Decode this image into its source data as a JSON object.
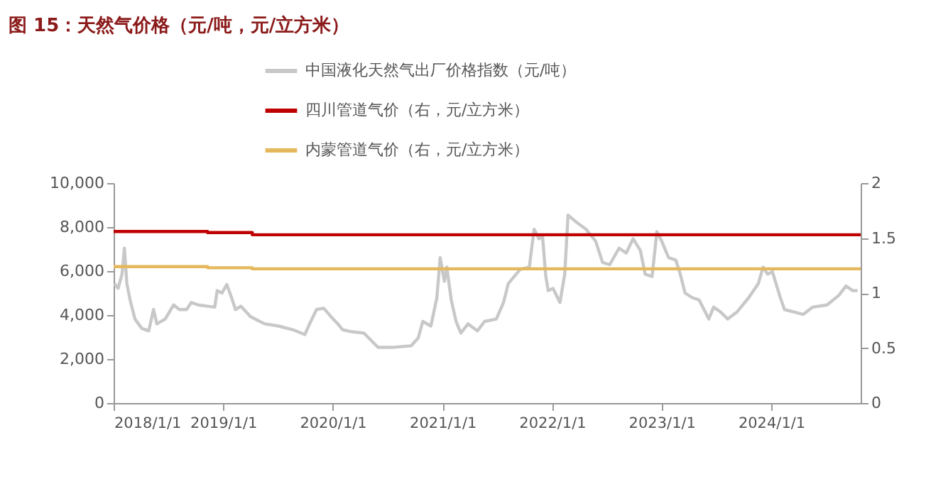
{
  "chart_data": {
    "type": "line",
    "title": "图 15：天然气价格（元/吨，元/立方米）",
    "xlim": [
      "2018-01-01",
      "2024-10-25"
    ],
    "xticks": [
      {
        "value": "2018-01-01",
        "label": "2018/1/1"
      },
      {
        "value": "2019-01-01",
        "label": "2019/1/1"
      },
      {
        "value": "2020-01-01",
        "label": "2020/1/1"
      },
      {
        "value": "2021-01-01",
        "label": "2021/1/1"
      },
      {
        "value": "2022-01-01",
        "label": "2022/1/1"
      },
      {
        "value": "2023-01-01",
        "label": "2023/1/1"
      },
      {
        "value": "2024-01-01",
        "label": "2024/1/1"
      }
    ],
    "ylim": [
      0,
      10000
    ],
    "yticks": [
      0,
      {
        "value": 2000,
        "label": "2,000"
      },
      {
        "value": 4000,
        "label": "4,000"
      },
      {
        "value": 6000,
        "label": "6,000"
      },
      {
        "value": 8000,
        "label": "8,000"
      },
      {
        "value": 10000,
        "label": "10,000"
      }
    ],
    "y2lim": [
      0,
      2
    ],
    "y2ticks": [
      0,
      0.5,
      1,
      1.5,
      2
    ],
    "legend": "top",
    "grid": false,
    "series": [
      {
        "name": "中国液化天然气出厂价格指数（元/吨）",
        "color": "#c8c8c8",
        "x": [
          "2018-01-04",
          "2018-01-16",
          "2018-01-29",
          "2018-02-06",
          "2018-02-14",
          "2018-02-25",
          "2018-03-13",
          "2018-04-05",
          "2018-04-28",
          "2018-05-14",
          "2018-05-25",
          "2018-06-22",
          "2018-07-20",
          "2018-08-08",
          "2018-09-01",
          "2018-09-17",
          "2018-10-10",
          "2018-11-11",
          "2018-12-04",
          "2018-12-12",
          "2018-12-28",
          "2019-01-13",
          "2019-01-29",
          "2019-02-11",
          "2019-03-01",
          "2019-04-02",
          "2019-05-19",
          "2019-07-05",
          "2019-08-22",
          "2019-09-30",
          "2019-10-16",
          "2019-11-08",
          "2019-12-02",
          "2019-12-26",
          "2020-01-18",
          "2020-02-03",
          "2020-03-05",
          "2020-04-14",
          "2020-05-31",
          "2020-07-17",
          "2020-09-18",
          "2020-10-12",
          "2020-10-27",
          "2020-11-23",
          "2020-12-13",
          "2020-12-24",
          "2021-01-07",
          "2021-01-15",
          "2021-01-30",
          "2021-02-15",
          "2021-03-03",
          "2021-03-27",
          "2021-04-27",
          "2021-05-21",
          "2021-06-29",
          "2021-07-23",
          "2021-08-08",
          "2021-09-16",
          "2021-10-17",
          "2021-11-02",
          "2021-11-18",
          "2021-11-30",
          "2021-12-11",
          "2021-12-19",
          "2022-01-04",
          "2022-01-27",
          "2022-02-12",
          "2022-02-23",
          "2022-03-23",
          "2022-04-24",
          "2022-05-26",
          "2022-06-18",
          "2022-07-12",
          "2022-08-12",
          "2022-09-05",
          "2022-09-28",
          "2022-10-22",
          "2022-11-07",
          "2022-11-30",
          "2022-12-16",
          "2023-01-01",
          "2023-01-24",
          "2023-02-17",
          "2023-03-04",
          "2023-03-20",
          "2023-04-13",
          "2023-05-06",
          "2023-06-07",
          "2023-06-23",
          "2023-07-16",
          "2023-08-09",
          "2023-09-09",
          "2023-10-18",
          "2023-11-19",
          "2023-12-05",
          "2023-12-20",
          "2024-01-05",
          "2024-01-29",
          "2024-02-14",
          "2024-03-16",
          "2024-04-17",
          "2024-05-18",
          "2024-07-05",
          "2024-08-13",
          "2024-09-06",
          "2024-09-29",
          "2024-10-15"
        ],
        "values": [
          5430,
          5210,
          5860,
          7040,
          5430,
          4680,
          3820,
          3390,
          3280,
          4250,
          3600,
          3820,
          4460,
          4250,
          4250,
          4570,
          4460,
          4400,
          4360,
          5110,
          5000,
          5390,
          4790,
          4250,
          4400,
          3930,
          3600,
          3500,
          3330,
          3110,
          3600,
          4250,
          4310,
          3930,
          3600,
          3330,
          3240,
          3180,
          2530,
          2530,
          2600,
          2960,
          3710,
          3500,
          4790,
          6610,
          5540,
          6180,
          4680,
          3710,
          3180,
          3600,
          3280,
          3710,
          3820,
          4570,
          5430,
          6070,
          6180,
          7900,
          7470,
          7580,
          5750,
          5110,
          5210,
          4570,
          5860,
          8540,
          8220,
          7900,
          7360,
          6390,
          6290,
          7040,
          6820,
          7470,
          6930,
          5860,
          5750,
          7790,
          7360,
          6610,
          6500,
          5860,
          5000,
          4790,
          4680,
          3820,
          4360,
          4140,
          3820,
          4140,
          4790,
          5430,
          6180,
          5860,
          5970,
          4890,
          4250,
          4140,
          4030,
          4360,
          4460,
          4890,
          5320,
          5110,
          5110
        ]
      },
      {
        "name": "四川管道气价（右，元/立方米）",
        "color": "#c00000",
        "type": "step",
        "axis": "y2",
        "x": [
          "2018-01-01",
          "2018-11-10",
          "2019-04-08",
          "2024-10-25"
        ],
        "values": [
          1.56,
          1.55,
          1.53,
          1.53
        ]
      },
      {
        "name": "内蒙管道气价（右，元/立方米）",
        "color": "#e6b85c",
        "type": "step",
        "axis": "y2",
        "x": [
          "2018-01-01",
          "2018-11-10",
          "2019-04-08",
          "2024-10-25"
        ],
        "values": [
          1.24,
          1.23,
          1.22,
          1.22
        ]
      }
    ]
  }
}
